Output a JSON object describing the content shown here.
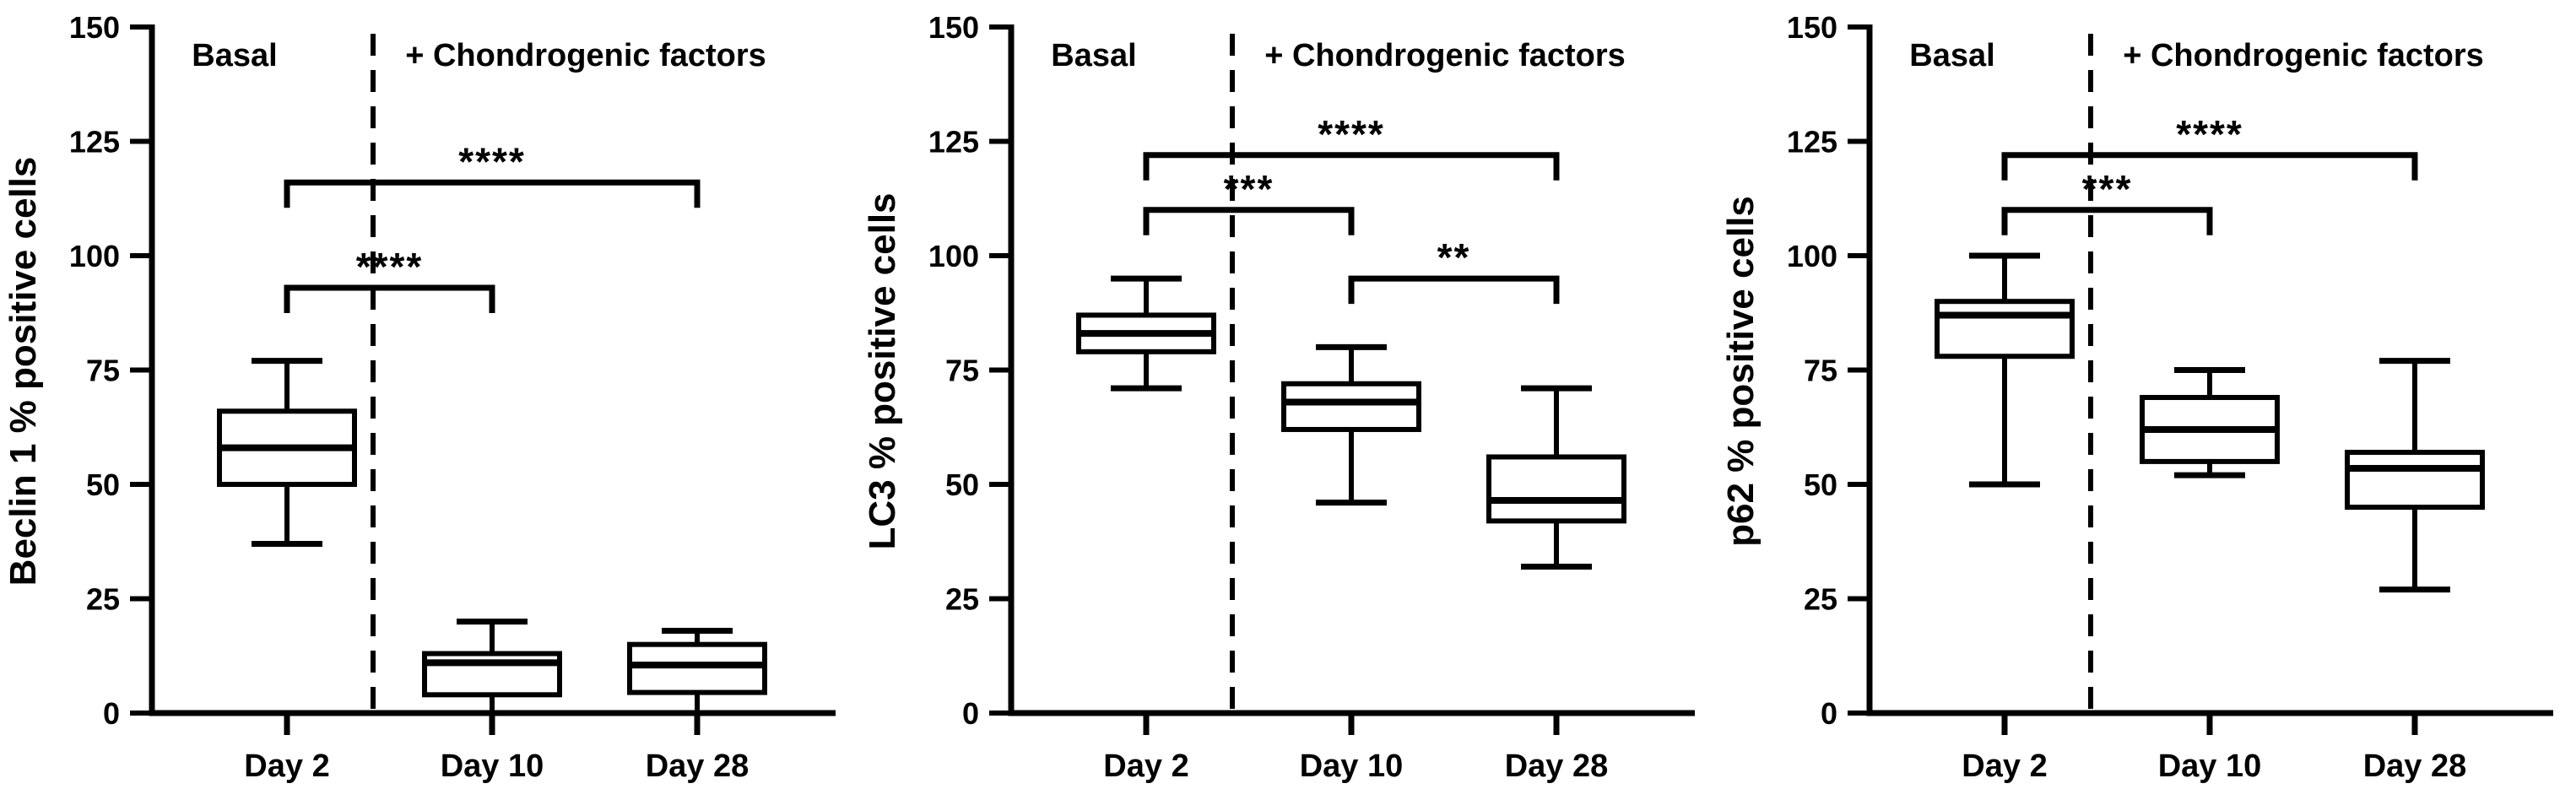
{
  "figure": {
    "background": "#ffffff",
    "ink_color": "#000000",
    "panel_count": 3,
    "region_label_left": "Basal",
    "region_label_right": "+ Chondrogenic factors"
  },
  "chart_data": [
    {
      "type": "box",
      "ylabel": "Beclin 1 % positive cells",
      "categories": [
        "Day 2",
        "Day 10",
        "Day 28"
      ],
      "ylim": [
        0,
        150
      ],
      "yticks": [
        0,
        25,
        50,
        75,
        100,
        125,
        150
      ],
      "grid": false,
      "region_labels": {
        "left": "Basal",
        "right": "+ Chondrogenic factors"
      },
      "divider_after_category": "Day 2",
      "boxes": [
        {
          "category": "Day 2",
          "whisker_min": 37,
          "q1": 50,
          "median": 58,
          "q3": 66,
          "whisker_max": 77
        },
        {
          "category": "Day 10",
          "whisker_min": 0,
          "q1": 4,
          "median": 11,
          "q3": 13,
          "whisker_max": 20
        },
        {
          "category": "Day 28",
          "whisker_min": 0,
          "q1": 4.5,
          "median": 10.5,
          "q3": 15,
          "whisker_max": 18
        }
      ],
      "significance_brackets": [
        {
          "from": "Day 2",
          "to": "Day 28",
          "label": "****",
          "height": 116
        },
        {
          "from": "Day 2",
          "to": "Day 10",
          "label": "****",
          "height": 93
        }
      ]
    },
    {
      "type": "box",
      "ylabel": "LC3 % positive cells",
      "categories": [
        "Day 2",
        "Day 10",
        "Day 28"
      ],
      "ylim": [
        0,
        150
      ],
      "yticks": [
        0,
        25,
        50,
        75,
        100,
        125,
        150
      ],
      "grid": false,
      "region_labels": {
        "left": "Basal",
        "right": "+ Chondrogenic factors"
      },
      "divider_after_category": "Day 2",
      "boxes": [
        {
          "category": "Day 2",
          "whisker_min": 71,
          "q1": 79,
          "median": 83,
          "q3": 87,
          "whisker_max": 95
        },
        {
          "category": "Day 10",
          "whisker_min": 46,
          "q1": 62,
          "median": 68,
          "q3": 72,
          "whisker_max": 80
        },
        {
          "category": "Day 28",
          "whisker_min": 32,
          "q1": 42,
          "median": 46.5,
          "q3": 56,
          "whisker_max": 71
        }
      ],
      "significance_brackets": [
        {
          "from": "Day 2",
          "to": "Day 28",
          "label": "****",
          "height": 122
        },
        {
          "from": "Day 2",
          "to": "Day 10",
          "label": "***",
          "height": 110
        },
        {
          "from": "Day 10",
          "to": "Day 28",
          "label": "**",
          "height": 95
        }
      ]
    },
    {
      "type": "box",
      "ylabel": "p62 % positive cells",
      "categories": [
        "Day 2",
        "Day 10",
        "Day 28"
      ],
      "ylim": [
        0,
        150
      ],
      "yticks": [
        0,
        25,
        50,
        75,
        100,
        125,
        150
      ],
      "grid": false,
      "region_labels": {
        "left": "Basal",
        "right": "+ Chondrogenic factors"
      },
      "divider_after_category": "Day 2",
      "boxes": [
        {
          "category": "Day 2",
          "whisker_min": 50,
          "q1": 78,
          "median": 87,
          "q3": 90,
          "whisker_max": 100
        },
        {
          "category": "Day 10",
          "whisker_min": 52,
          "q1": 55,
          "median": 62,
          "q3": 69,
          "whisker_max": 75
        },
        {
          "category": "Day 28",
          "whisker_min": 27,
          "q1": 45,
          "median": 53.5,
          "q3": 57,
          "whisker_max": 77
        }
      ],
      "significance_brackets": [
        {
          "from": "Day 2",
          "to": "Day 28",
          "label": "****",
          "height": 122
        },
        {
          "from": "Day 2",
          "to": "Day 10",
          "label": "***",
          "height": 110
        }
      ]
    }
  ]
}
